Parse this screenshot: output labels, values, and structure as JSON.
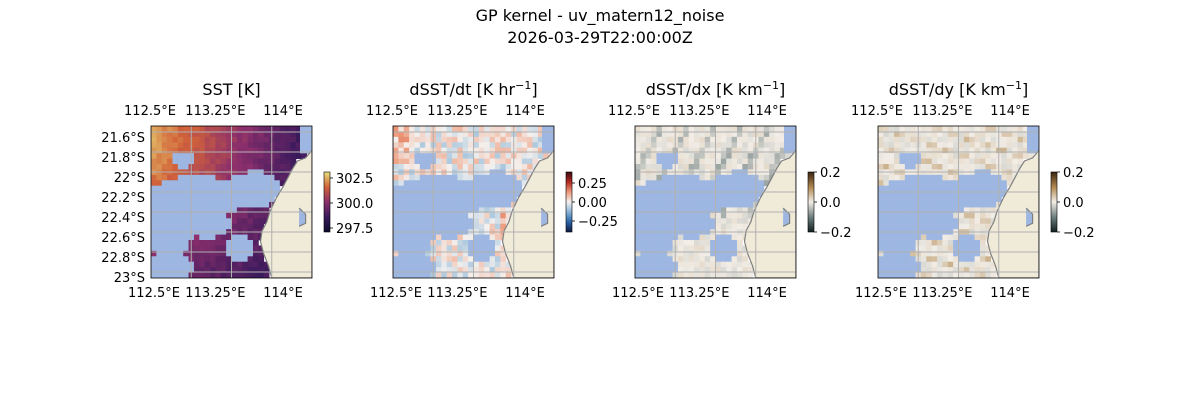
{
  "figure": {
    "title": "GP kernel - uv_matern12_noise",
    "subtitle": "2026-03-29T22:00:00Z"
  },
  "panels": [
    {
      "id": "sst",
      "title": "SST [K]",
      "lon_ticks": [
        "112.5°E",
        "113.25°E",
        "114°E"
      ],
      "lat_ticks": [
        "21.6°S",
        "21.8°S",
        "22°S",
        "22.2°S",
        "22.4°S",
        "22.6°S",
        "22.8°S",
        "23°S"
      ],
      "colorbar_ticks": [
        "302.5",
        "300.0",
        "297.5"
      ],
      "colormap": "thermal",
      "colorbar_colors": [
        "#e8e17a",
        "#d2623a",
        "#8b2f6c",
        "#3a1a5c",
        "#0c0c2c"
      ]
    },
    {
      "id": "dsst_dt",
      "title": "dSST/dt [K hr",
      "title_exponent": "−1",
      "title_suffix": "]",
      "lon_ticks": [
        "112.5°E",
        "113.25°E",
        "114°E"
      ],
      "colorbar_ticks": [
        "0.25",
        "0.00",
        "−0.25"
      ],
      "colormap": "balance",
      "colorbar_colors": [
        "#3b0a12",
        "#b22a22",
        "#ee9a7a",
        "#f4f1ef",
        "#86b3d5",
        "#2a63a8",
        "#0f1a40"
      ]
    },
    {
      "id": "dsst_dx",
      "title": "dSST/dx [K km",
      "title_exponent": "−1",
      "title_suffix": "]",
      "lon_ticks": [
        "112.5°E",
        "113.25°E",
        "114°E"
      ],
      "colorbar_ticks": [
        "0.2",
        "0.0",
        "−0.2"
      ],
      "colormap": "diff",
      "colorbar_colors": [
        "#3a2510",
        "#b08850",
        "#f2ede6",
        "#6f8080",
        "#122020"
      ]
    },
    {
      "id": "dsst_dy",
      "title": "dSST/dy [K km",
      "title_exponent": "−1",
      "title_suffix": "]",
      "lon_ticks": [
        "112.5°E",
        "113.25°E",
        "114°E"
      ],
      "colorbar_ticks": [
        "0.2",
        "0.0",
        "−0.2"
      ],
      "colormap": "diff",
      "colorbar_colors": [
        "#3a2510",
        "#b08850",
        "#f2ede6",
        "#6f8080",
        "#122020"
      ]
    }
  ],
  "colors": {
    "land": "#efebd8",
    "coast": "#7f7f7f",
    "nodata": "#9db7e2",
    "grid": "#b0b0b0"
  }
}
